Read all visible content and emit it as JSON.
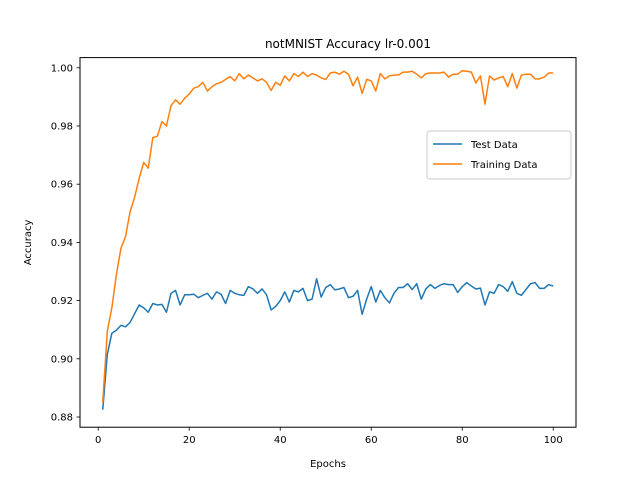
{
  "chart_data": {
    "type": "line",
    "title": "notMNIST Accuracy lr-0.001",
    "xlabel": "Epochs",
    "ylabel": "Accuracy",
    "xlim": [
      -4,
      105
    ],
    "ylim": [
      0.8765,
      1.0035
    ],
    "xticks": [
      0,
      20,
      40,
      60,
      80,
      100
    ],
    "yticks": [
      0.88,
      0.9,
      0.92,
      0.94,
      0.96,
      0.98,
      1.0
    ],
    "ytick_labels": [
      "0.88",
      "0.90",
      "0.92",
      "0.94",
      "0.96",
      "0.98",
      "1.00"
    ],
    "grid": false,
    "legend_position": "center-right",
    "series": [
      {
        "name": "Test Data",
        "color": "#1f77b4",
        "x": [
          1,
          2,
          3,
          4,
          5,
          6,
          7,
          8,
          9,
          10,
          11,
          12,
          13,
          14,
          15,
          16,
          17,
          18,
          19,
          20,
          21,
          22,
          23,
          24,
          25,
          26,
          27,
          28,
          29,
          30,
          31,
          32,
          33,
          34,
          35,
          36,
          37,
          38,
          39,
          40,
          41,
          42,
          43,
          44,
          45,
          46,
          47,
          48,
          49,
          50,
          51,
          52,
          53,
          54,
          55,
          56,
          57,
          58,
          59,
          60,
          61,
          62,
          63,
          64,
          65,
          66,
          67,
          68,
          69,
          70,
          71,
          72,
          73,
          74,
          75,
          76,
          77,
          78,
          79,
          80,
          81,
          82,
          83,
          84,
          85,
          86,
          87,
          88,
          89,
          90,
          91,
          92,
          93,
          94,
          95,
          96,
          97,
          98,
          99,
          100
        ],
        "values": [
          0.8825,
          0.9015,
          0.9088,
          0.9098,
          0.9115,
          0.911,
          0.9125,
          0.9155,
          0.9185,
          0.9175,
          0.916,
          0.919,
          0.9185,
          0.9187,
          0.916,
          0.9225,
          0.9235,
          0.9185,
          0.922,
          0.922,
          0.9222,
          0.921,
          0.9218,
          0.9225,
          0.9205,
          0.923,
          0.9222,
          0.919,
          0.9235,
          0.9225,
          0.922,
          0.9218,
          0.9248,
          0.924,
          0.9225,
          0.924,
          0.922,
          0.9168,
          0.918,
          0.92,
          0.923,
          0.9195,
          0.9235,
          0.923,
          0.9242,
          0.92,
          0.9205,
          0.9275,
          0.9212,
          0.9245,
          0.9255,
          0.9237,
          0.924,
          0.9245,
          0.921,
          0.9215,
          0.9235,
          0.9153,
          0.9205,
          0.9248,
          0.9195,
          0.9235,
          0.921,
          0.9192,
          0.9225,
          0.9245,
          0.9245,
          0.9258,
          0.9238,
          0.9258,
          0.9205,
          0.924,
          0.9255,
          0.9242,
          0.9252,
          0.9258,
          0.9255,
          0.9255,
          0.9228,
          0.9248,
          0.9262,
          0.925,
          0.924,
          0.9243,
          0.9185,
          0.923,
          0.9225,
          0.9255,
          0.9248,
          0.9232,
          0.9265,
          0.9225,
          0.9218,
          0.9238,
          0.9258,
          0.9262,
          0.9242,
          0.9242,
          0.9255,
          0.925
        ]
      },
      {
        "name": "Training Data",
        "color": "#ff7f0e",
        "x": [
          1,
          2,
          3,
          4,
          5,
          6,
          7,
          8,
          9,
          10,
          11,
          12,
          13,
          14,
          15,
          16,
          17,
          18,
          19,
          20,
          21,
          22,
          23,
          24,
          25,
          26,
          27,
          28,
          29,
          30,
          31,
          32,
          33,
          34,
          35,
          36,
          37,
          38,
          39,
          40,
          41,
          42,
          43,
          44,
          45,
          46,
          47,
          48,
          49,
          50,
          51,
          52,
          53,
          54,
          55,
          56,
          57,
          58,
          59,
          60,
          61,
          62,
          63,
          64,
          65,
          66,
          67,
          68,
          69,
          70,
          71,
          72,
          73,
          74,
          75,
          76,
          77,
          78,
          79,
          80,
          81,
          82,
          83,
          84,
          85,
          86,
          87,
          88,
          89,
          90,
          91,
          92,
          93,
          94,
          95,
          96,
          97,
          98,
          99,
          100
        ],
        "values": [
          0.885,
          0.9095,
          0.9175,
          0.929,
          0.938,
          0.942,
          0.9505,
          0.9555,
          0.962,
          0.9675,
          0.9655,
          0.976,
          0.9765,
          0.9815,
          0.98,
          0.987,
          0.989,
          0.9875,
          0.9895,
          0.991,
          0.993,
          0.9935,
          0.995,
          0.992,
          0.9935,
          0.9945,
          0.995,
          0.996,
          0.997,
          0.9955,
          0.998,
          0.9962,
          0.9975,
          0.9965,
          0.9955,
          0.9962,
          0.995,
          0.9922,
          0.995,
          0.994,
          0.9972,
          0.9955,
          0.998,
          0.997,
          0.9985,
          0.997,
          0.998,
          0.9975,
          0.9965,
          0.996,
          0.9982,
          0.9985,
          0.9978,
          0.9988,
          0.9978,
          0.9938,
          0.9968,
          0.9912,
          0.996,
          0.9955,
          0.992,
          0.998,
          0.9962,
          0.9972,
          0.9975,
          0.9975,
          0.9985,
          0.9985,
          0.9988,
          0.9978,
          0.9965,
          0.998,
          0.9982,
          0.9982,
          0.9982,
          0.9985,
          0.9968,
          0.9978,
          0.9978,
          0.999,
          0.9988,
          0.9985,
          0.9948,
          0.9972,
          0.9875,
          0.9972,
          0.9958,
          0.9965,
          0.997,
          0.9935,
          0.998,
          0.993,
          0.9975,
          0.9978,
          0.9978,
          0.9962,
          0.9962,
          0.9968,
          0.9982,
          0.9982
        ]
      }
    ]
  }
}
